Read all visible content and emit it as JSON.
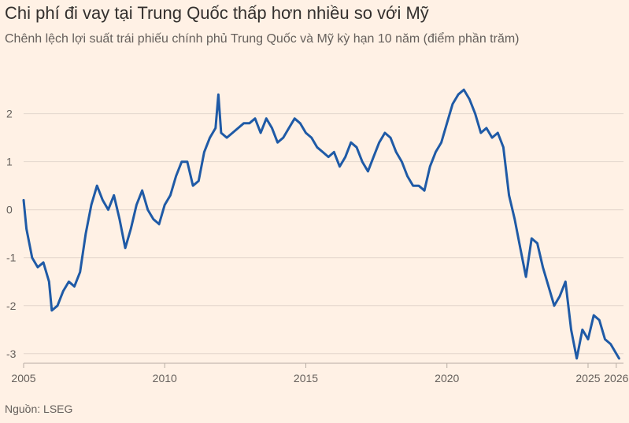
{
  "title": "Chi phí đi vay tại Trung Quốc thấp hơn nhiều so với Mỹ",
  "subtitle": "Chênh lệch lợi suất trái phiếu chính phủ Trung Quốc và Mỹ kỳ hạn 10 năm (điểm phần trăm)",
  "source": "Nguồn: LSEG",
  "colors": {
    "background": "#fff1e5",
    "line": "#1f5aa6",
    "grid": "#e3d6cc",
    "text": "#66605c"
  },
  "chart_data": {
    "type": "line",
    "xlim": [
      2005,
      2026.2
    ],
    "ylim": [
      -3.2,
      2.6
    ],
    "yticks": [
      2,
      1,
      0,
      -1,
      -2,
      -3
    ],
    "ytick_labels": [
      "2",
      "1",
      "0",
      "-1",
      "-2",
      "-3"
    ],
    "xticks": [
      2005,
      2010,
      2015,
      2020,
      2025,
      2026
    ],
    "xtick_labels": [
      "2005",
      "2010",
      "2015",
      "2020",
      "2025",
      "2026"
    ],
    "grid": "horizontal",
    "series": [
      {
        "x": [
          2005.0,
          2005.1,
          2005.3,
          2005.5,
          2005.7,
          2005.9,
          2006.0,
          2006.2,
          2006.4,
          2006.6,
          2006.8,
          2007.0,
          2007.2,
          2007.4,
          2007.6,
          2007.8,
          2008.0,
          2008.2,
          2008.4,
          2008.6,
          2008.8,
          2009.0,
          2009.2,
          2009.4,
          2009.6,
          2009.8,
          2010.0,
          2010.2,
          2010.4,
          2010.6,
          2010.8,
          2011.0,
          2011.2,
          2011.4,
          2011.6,
          2011.8,
          2011.9,
          2012.0,
          2012.2,
          2012.4,
          2012.6,
          2012.8,
          2013.0,
          2013.2,
          2013.4,
          2013.6,
          2013.8,
          2014.0,
          2014.2,
          2014.4,
          2014.6,
          2014.8,
          2015.0,
          2015.2,
          2015.4,
          2015.6,
          2015.8,
          2016.0,
          2016.2,
          2016.4,
          2016.6,
          2016.8,
          2017.0,
          2017.2,
          2017.4,
          2017.6,
          2017.8,
          2018.0,
          2018.2,
          2018.4,
          2018.6,
          2018.8,
          2019.0,
          2019.2,
          2019.4,
          2019.6,
          2019.8,
          2020.0,
          2020.2,
          2020.4,
          2020.6,
          2020.8,
          2021.0,
          2021.2,
          2021.4,
          2021.6,
          2021.8,
          2022.0,
          2022.2,
          2022.4,
          2022.6,
          2022.8,
          2023.0,
          2023.2,
          2023.4,
          2023.6,
          2023.8,
          2024.0,
          2024.2,
          2024.4,
          2024.6,
          2024.8,
          2025.0,
          2025.2,
          2025.4,
          2025.6,
          2025.8,
          2026.0,
          2026.1
        ],
        "y": [
          0.2,
          -0.4,
          -1.0,
          -1.2,
          -1.1,
          -1.5,
          -2.1,
          -2.0,
          -1.7,
          -1.5,
          -1.6,
          -1.3,
          -0.5,
          0.1,
          0.5,
          0.2,
          0.0,
          0.3,
          -0.2,
          -0.8,
          -0.4,
          0.1,
          0.4,
          0.0,
          -0.2,
          -0.3,
          0.1,
          0.3,
          0.7,
          1.0,
          1.0,
          0.5,
          0.6,
          1.2,
          1.5,
          1.7,
          2.4,
          1.6,
          1.5,
          1.6,
          1.7,
          1.8,
          1.8,
          1.9,
          1.6,
          1.9,
          1.7,
          1.4,
          1.5,
          1.7,
          1.9,
          1.8,
          1.6,
          1.5,
          1.3,
          1.2,
          1.1,
          1.2,
          0.9,
          1.1,
          1.4,
          1.3,
          1.0,
          0.8,
          1.1,
          1.4,
          1.6,
          1.5,
          1.2,
          1.0,
          0.7,
          0.5,
          0.5,
          0.4,
          0.9,
          1.2,
          1.4,
          1.8,
          2.2,
          2.4,
          2.5,
          2.3,
          2.0,
          1.6,
          1.7,
          1.5,
          1.6,
          1.3,
          0.3,
          -0.2,
          -0.8,
          -1.4,
          -0.6,
          -0.7,
          -1.2,
          -1.6,
          -2.0,
          -1.8,
          -1.5,
          -2.5,
          -3.1,
          -2.5,
          -2.7,
          -2.2,
          -2.3,
          -2.7,
          -2.8,
          -3.0,
          -3.1
        ]
      }
    ]
  }
}
